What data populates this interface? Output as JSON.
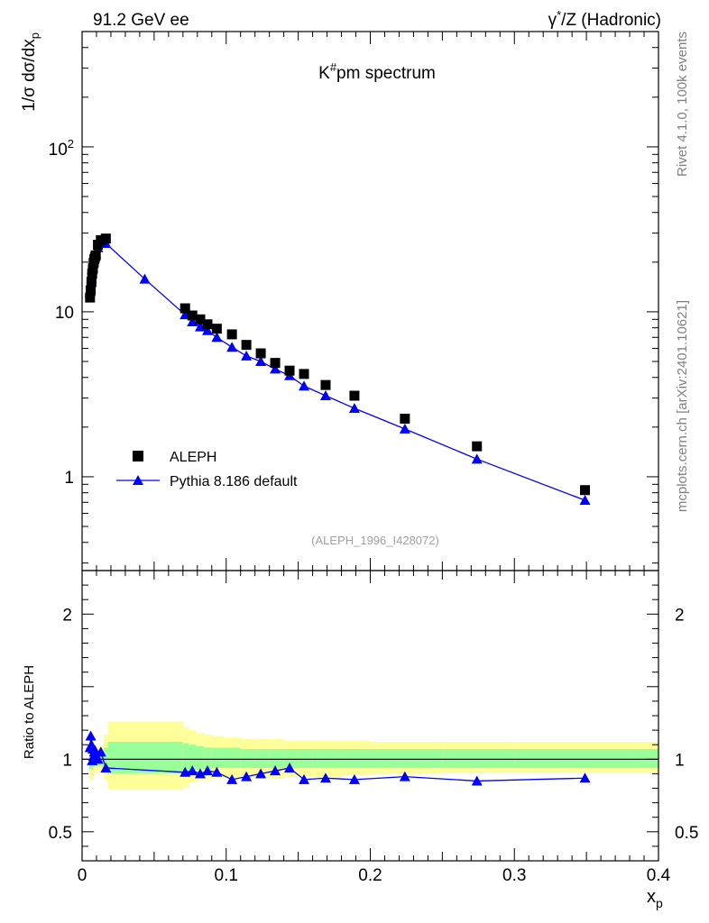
{
  "header": {
    "left": "91.2 GeV ee",
    "right_prefix": "γ",
    "right_sup": "*",
    "right_suffix": "/Z (Hadronic)"
  },
  "side_labels": {
    "rivet": "Rivet 4.1.0,  100k events",
    "mcplots": "mcplots.cern.ch [arXiv:2401.10621]"
  },
  "chart_data": [
    {
      "type": "scatter",
      "panel": "main",
      "title_base": "K",
      "title_sup": "#",
      "title_rest": "pm spectrum",
      "ylabel_prefix": "1/σ   dσ/dx",
      "ylabel_sub": "p",
      "yscale": "log",
      "xlim": [
        0,
        0.4
      ],
      "ylim": [
        0.27,
        500
      ],
      "ytick_labels": {
        "1": "1",
        "10": "10",
        "100": "10",
        "100_sup": "2"
      },
      "watermark": "(ALEPH_1996_I428072)",
      "legend_position": "bottom-left",
      "series": [
        {
          "name": "ALEPH",
          "style": "black-square-markers",
          "color": "#000000",
          "x": [
            0.0055,
            0.006,
            0.0065,
            0.007,
            0.0075,
            0.008,
            0.0085,
            0.009,
            0.0095,
            0.011,
            0.013,
            0.0165,
            0.0715,
            0.0765,
            0.082,
            0.087,
            0.0935,
            0.104,
            0.114,
            0.124,
            0.134,
            0.144,
            0.154,
            0.169,
            0.189,
            0.224,
            0.274,
            0.349
          ],
          "values": [
            12.2,
            13.5,
            15.2,
            17.0,
            18.3,
            19.8,
            20.8,
            21.5,
            22.0,
            25.5,
            27.2,
            27.8,
            10.5,
            9.5,
            9.0,
            8.4,
            7.9,
            7.3,
            6.3,
            5.6,
            4.9,
            4.4,
            4.2,
            3.6,
            3.1,
            2.25,
            1.53,
            0.83
          ]
        },
        {
          "name": "Pythia 8.186 default",
          "style": "blue-line-triangles",
          "color": "#0000ff",
          "x": [
            0.0055,
            0.006,
            0.0065,
            0.007,
            0.0075,
            0.008,
            0.0085,
            0.009,
            0.0095,
            0.011,
            0.013,
            0.0165,
            0.0435,
            0.0715,
            0.0765,
            0.082,
            0.087,
            0.0935,
            0.104,
            0.114,
            0.124,
            0.134,
            0.144,
            0.154,
            0.169,
            0.189,
            0.224,
            0.274,
            0.349
          ],
          "values": [
            13.2,
            15.0,
            16.0,
            18.0,
            19.5,
            20.2,
            21.0,
            22.0,
            22.5,
            24.5,
            26.0,
            26.0,
            15.8,
            9.6,
            8.7,
            8.1,
            7.7,
            7.0,
            6.1,
            5.4,
            5.0,
            4.5,
            4.1,
            3.55,
            3.1,
            2.6,
            1.95,
            1.28,
            0.72
          ]
        }
      ]
    },
    {
      "type": "line",
      "panel": "ratio",
      "ylabel": "Ratio to ALEPH",
      "xlabel_base": "x",
      "xlabel_sub": "p",
      "xlim": [
        0,
        0.4
      ],
      "ylim": [
        0.3,
        2.3
      ],
      "yticks": [
        0.5,
        1,
        2
      ],
      "ytick_labels": [
        "0.5",
        "1",
        "2"
      ],
      "xticks": [
        0,
        0.1,
        0.2,
        0.3,
        0.4
      ],
      "xtick_labels": [
        "0",
        "0.1",
        "0.2",
        "0.3",
        "0.4"
      ],
      "reference_line": 1,
      "bands": {
        "x_edges": [
          0.005,
          0.008,
          0.01,
          0.012,
          0.015,
          0.018,
          0.07,
          0.074,
          0.079,
          0.085,
          0.09,
          0.098,
          0.11,
          0.12,
          0.13,
          0.14,
          0.15,
          0.16,
          0.18,
          0.2,
          0.25,
          0.3,
          0.4
        ],
        "yellow_lo": [
          0.86,
          0.9,
          0.92,
          0.91,
          0.86,
          0.79,
          0.81,
          0.84,
          0.85,
          0.86,
          0.87,
          0.87,
          0.87,
          0.87,
          0.87,
          0.88,
          0.88,
          0.88,
          0.89,
          0.9,
          0.91,
          0.91
        ],
        "yellow_hi": [
          1.14,
          1.1,
          1.09,
          1.09,
          1.17,
          1.26,
          1.22,
          1.2,
          1.18,
          1.17,
          1.16,
          1.15,
          1.14,
          1.14,
          1.14,
          1.13,
          1.13,
          1.13,
          1.13,
          1.12,
          1.12,
          1.12
        ],
        "green_lo": [
          0.93,
          0.95,
          0.95,
          0.95,
          0.93,
          0.9,
          0.91,
          0.92,
          0.93,
          0.93,
          0.94,
          0.94,
          0.94,
          0.94,
          0.94,
          0.94,
          0.94,
          0.94,
          0.94,
          0.94,
          0.94,
          0.94
        ],
        "green_hi": [
          1.07,
          1.05,
          1.05,
          1.05,
          1.08,
          1.12,
          1.11,
          1.1,
          1.09,
          1.08,
          1.08,
          1.08,
          1.07,
          1.07,
          1.07,
          1.07,
          1.07,
          1.07,
          1.07,
          1.07,
          1.07,
          1.07
        ]
      },
      "series": [
        {
          "name": "Pythia 8.186 default / ALEPH",
          "color": "#0000ff",
          "x": [
            0.0055,
            0.006,
            0.0065,
            0.007,
            0.0075,
            0.008,
            0.0085,
            0.009,
            0.0095,
            0.011,
            0.013,
            0.0165,
            0.0715,
            0.0765,
            0.082,
            0.087,
            0.0935,
            0.104,
            0.114,
            0.124,
            0.134,
            0.144,
            0.154,
            0.169,
            0.189,
            0.224,
            0.274,
            0.349
          ],
          "values": [
            1.08,
            1.16,
            1.1,
            0.99,
            1.07,
            1.02,
            1.05,
            1.06,
            1.03,
            1.0,
            1.05,
            0.94,
            0.91,
            0.92,
            0.9,
            0.92,
            0.91,
            0.86,
            0.88,
            0.9,
            0.92,
            0.94,
            0.86,
            0.87,
            0.86,
            0.88,
            0.85,
            0.87
          ]
        }
      ]
    }
  ]
}
